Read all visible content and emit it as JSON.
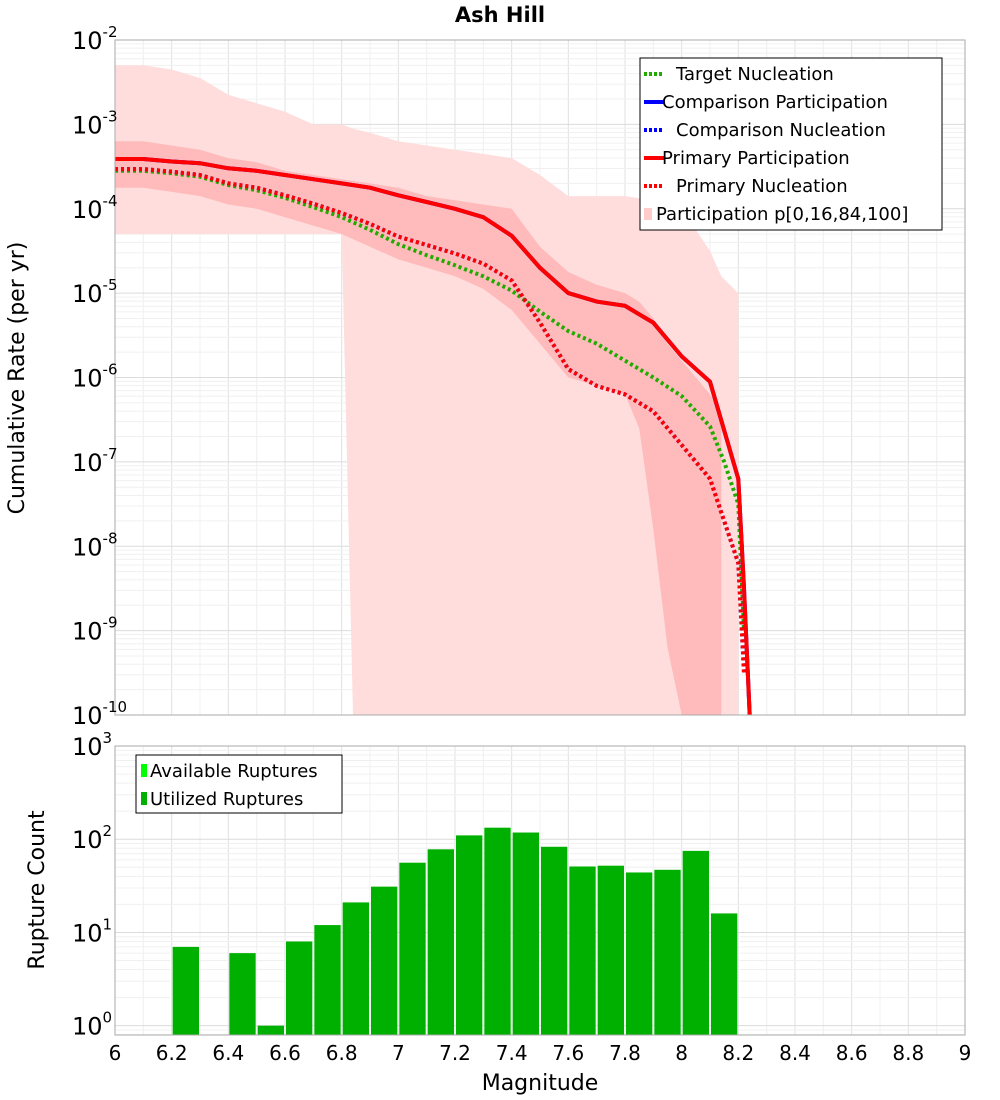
{
  "chart_data": [
    {
      "type": "line",
      "title": "Ash Hill",
      "xlabel": "",
      "ylabel": "Cumulative Rate (per yr)",
      "xlim": [
        6,
        9
      ],
      "ylim_log10": [
        -10,
        -2
      ],
      "y_ticks": [
        {
          "base": "10",
          "exp": "-2"
        },
        {
          "base": "10",
          "exp": "-3"
        },
        {
          "base": "10",
          "exp": "-4"
        },
        {
          "base": "10",
          "exp": "-5"
        },
        {
          "base": "10",
          "exp": "-6"
        },
        {
          "base": "10",
          "exp": "-7"
        },
        {
          "base": "10",
          "exp": "-8"
        },
        {
          "base": "10",
          "exp": "-9"
        },
        {
          "base": "10",
          "exp": "-10"
        }
      ],
      "grid": true,
      "legend_position": "top-right",
      "legend": [
        {
          "label": "Target Nucleation",
          "color": "#22aa00",
          "style": "dotted"
        },
        {
          "label": "Comparison Participation",
          "color": "#0000ff",
          "style": "solid"
        },
        {
          "label": "Comparison Nucleation",
          "color": "#0000ff",
          "style": "dotted"
        },
        {
          "label": "Primary Participation",
          "color": "#ff0000",
          "style": "solid"
        },
        {
          "label": "Primary Nucleation",
          "color": "#ff0000",
          "style": "dotted"
        },
        {
          "label": "Participation p[0,16,84,100]",
          "color": "#ffcccc",
          "style": "fill"
        }
      ],
      "bands": {
        "p0_p100": {
          "color": "#ffdddd",
          "x": [
            6.0,
            6.1,
            6.2,
            6.3,
            6.4,
            6.5,
            6.6,
            6.7,
            6.8,
            6.84,
            6.9,
            7.0,
            7.1,
            7.2,
            7.3,
            7.4,
            7.5,
            7.6,
            7.7,
            7.8,
            7.9,
            8.0,
            8.1,
            8.14,
            8.2
          ],
          "upper_log10": [
            -2.3,
            -2.3,
            -2.35,
            -2.45,
            -2.65,
            -2.75,
            -2.85,
            -3.0,
            -3.0,
            -3.05,
            -3.1,
            -3.2,
            -3.25,
            -3.3,
            -3.35,
            -3.4,
            -3.6,
            -3.85,
            -3.85,
            -3.85,
            -3.9,
            -4.0,
            -4.5,
            -4.8,
            -5.0
          ],
          "lower_log10": [
            -4.3,
            -4.3,
            -4.3,
            -4.3,
            -4.3,
            -4.3,
            -4.3,
            -4.3,
            -4.3,
            -10,
            -10,
            -10,
            -10,
            -10,
            -10,
            -10,
            -10,
            -10,
            -10,
            -10,
            -10,
            -10,
            -10,
            -10,
            -10
          ]
        },
        "p16_p84": {
          "color": "#ffbbbb",
          "x": [
            6.0,
            6.1,
            6.2,
            6.3,
            6.4,
            6.5,
            6.6,
            6.7,
            6.8,
            6.9,
            7.0,
            7.1,
            7.2,
            7.3,
            7.4,
            7.5,
            7.6,
            7.7,
            7.8,
            7.85,
            7.9,
            7.95,
            8.0,
            8.1,
            8.14
          ],
          "upper_log10": [
            -3.2,
            -3.2,
            -3.25,
            -3.3,
            -3.4,
            -3.45,
            -3.55,
            -3.6,
            -3.65,
            -3.7,
            -3.75,
            -3.85,
            -3.9,
            -3.95,
            -4.0,
            -4.45,
            -4.75,
            -4.9,
            -5.0,
            -5.1,
            -5.3,
            -5.6,
            -5.8,
            -6.2,
            -6.4
          ],
          "lower_log10": [
            -3.75,
            -3.75,
            -3.8,
            -3.85,
            -3.95,
            -4.0,
            -4.1,
            -4.2,
            -4.3,
            -4.45,
            -4.6,
            -4.7,
            -4.8,
            -4.95,
            -5.2,
            -5.6,
            -6.0,
            -6.1,
            -6.2,
            -6.6,
            -7.8,
            -9.2,
            -10,
            -10,
            -10
          ]
        }
      },
      "series": [
        {
          "name": "Target Nucleation",
          "color": "#22aa00",
          "style": "dotted",
          "x": [
            6.0,
            6.1,
            6.2,
            6.3,
            6.4,
            6.5,
            6.6,
            6.7,
            6.8,
            6.9,
            7.0,
            7.1,
            7.2,
            7.3,
            7.4,
            7.5,
            7.6,
            7.7,
            7.8,
            7.9,
            8.0,
            8.1,
            8.15,
            8.2,
            8.22
          ],
          "log10_y": [
            -3.55,
            -3.55,
            -3.58,
            -3.62,
            -3.72,
            -3.78,
            -3.87,
            -3.98,
            -4.1,
            -4.25,
            -4.42,
            -4.55,
            -4.67,
            -4.8,
            -4.97,
            -5.22,
            -5.45,
            -5.6,
            -5.8,
            -6.0,
            -6.22,
            -6.58,
            -7.0,
            -7.5,
            -9.0
          ]
        },
        {
          "name": "Comparison Participation",
          "color": "#0000ff",
          "style": "solid",
          "x": [
            6.0,
            6.1,
            6.2,
            6.3,
            6.4,
            6.5,
            6.6,
            6.7,
            6.8,
            6.9,
            7.0,
            7.1,
            7.2,
            7.3,
            7.4,
            7.5,
            7.6,
            7.7,
            7.8,
            7.9,
            8.0,
            8.1,
            8.2,
            8.22,
            8.24
          ],
          "log10_y": [
            -3.41,
            -3.41,
            -3.44,
            -3.46,
            -3.52,
            -3.55,
            -3.6,
            -3.65,
            -3.7,
            -3.75,
            -3.84,
            -3.92,
            -4.0,
            -4.1,
            -4.32,
            -4.7,
            -5.0,
            -5.1,
            -5.15,
            -5.35,
            -5.75,
            -6.05,
            -7.2,
            -8.5,
            -10.0
          ]
        },
        {
          "name": "Comparison Nucleation",
          "color": "#0000ff",
          "style": "dotted",
          "x": [
            6.0,
            6.1,
            6.2,
            6.3,
            6.4,
            6.5,
            6.6,
            6.7,
            6.8,
            6.9,
            7.0,
            7.1,
            7.2,
            7.3,
            7.4,
            7.5,
            7.6,
            7.7,
            7.8,
            7.9,
            8.0,
            8.1,
            8.2,
            8.22
          ],
          "log10_y": [
            -3.53,
            -3.53,
            -3.56,
            -3.6,
            -3.7,
            -3.75,
            -3.84,
            -3.94,
            -4.05,
            -4.18,
            -4.33,
            -4.43,
            -4.53,
            -4.65,
            -4.85,
            -5.35,
            -5.9,
            -6.1,
            -6.2,
            -6.4,
            -6.8,
            -7.2,
            -8.2,
            -9.5
          ]
        },
        {
          "name": "Primary Participation",
          "color": "#ff0000",
          "style": "solid",
          "x": [
            6.0,
            6.1,
            6.2,
            6.3,
            6.4,
            6.5,
            6.6,
            6.7,
            6.8,
            6.9,
            7.0,
            7.1,
            7.2,
            7.3,
            7.4,
            7.5,
            7.6,
            7.7,
            7.8,
            7.9,
            8.0,
            8.1,
            8.2,
            8.22,
            8.24
          ],
          "log10_y": [
            -3.41,
            -3.41,
            -3.44,
            -3.46,
            -3.52,
            -3.55,
            -3.6,
            -3.65,
            -3.7,
            -3.75,
            -3.84,
            -3.92,
            -4.0,
            -4.1,
            -4.32,
            -4.7,
            -5.0,
            -5.1,
            -5.15,
            -5.35,
            -5.75,
            -6.05,
            -7.2,
            -8.5,
            -10.0
          ]
        },
        {
          "name": "Primary Nucleation",
          "color": "#ff0000",
          "style": "dotted",
          "x": [
            6.0,
            6.1,
            6.2,
            6.3,
            6.4,
            6.5,
            6.6,
            6.7,
            6.8,
            6.9,
            7.0,
            7.1,
            7.2,
            7.3,
            7.4,
            7.5,
            7.6,
            7.7,
            7.8,
            7.9,
            8.0,
            8.1,
            8.2,
            8.22
          ],
          "log10_y": [
            -3.53,
            -3.53,
            -3.56,
            -3.6,
            -3.7,
            -3.75,
            -3.84,
            -3.94,
            -4.05,
            -4.18,
            -4.33,
            -4.43,
            -4.53,
            -4.65,
            -4.85,
            -5.35,
            -5.9,
            -6.1,
            -6.2,
            -6.4,
            -6.8,
            -7.2,
            -8.2,
            -9.5
          ]
        }
      ]
    },
    {
      "type": "bar",
      "title": "",
      "xlabel": "Magnitude",
      "ylabel": "Rupture Count",
      "xlim": [
        6,
        9
      ],
      "ylim_log10": [
        -0.1,
        3
      ],
      "x_ticks": [
        "6",
        "6.2",
        "6.4",
        "6.6",
        "6.8",
        "7",
        "7.2",
        "7.4",
        "7.6",
        "7.8",
        "8",
        "8.2",
        "8.4",
        "8.6",
        "8.8",
        "9"
      ],
      "y_ticks": [
        {
          "base": "10",
          "exp": "3"
        },
        {
          "base": "10",
          "exp": "2"
        },
        {
          "base": "10",
          "exp": "1"
        },
        {
          "base": "10",
          "exp": "0"
        }
      ],
      "grid": true,
      "legend_position": "top-left",
      "legend": [
        {
          "label": "Available Ruptures",
          "color": "#00ff00"
        },
        {
          "label": "Utilized Ruptures",
          "color": "#00b000"
        }
      ],
      "bin_width": 0.1,
      "bins": [
        6.25,
        6.45,
        6.55,
        6.65,
        6.75,
        6.85,
        6.95,
        7.05,
        7.15,
        7.25,
        7.35,
        7.45,
        7.55,
        7.65,
        7.75,
        7.85,
        7.95,
        8.05,
        8.15
      ],
      "series": [
        {
          "name": "Utilized Ruptures",
          "color": "#00b000",
          "values": [
            7,
            6,
            1,
            8,
            12,
            21,
            31,
            56,
            78,
            110,
            133,
            118,
            83,
            51,
            52,
            44,
            47,
            75,
            16
          ]
        }
      ]
    }
  ]
}
